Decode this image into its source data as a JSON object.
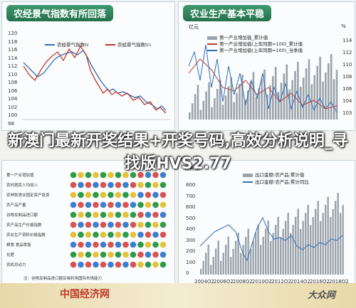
{
  "overlay_title": "新澳门最新开奖结果+开奖号码,高效分析说明_寻找版HVS2.77",
  "panels": [
    {
      "title": "农经景气指数有所回落",
      "legend": [
        "农经景气指数tc",
        "农经景气指数tci"
      ],
      "yticks": [
        "120",
        "118",
        "116",
        "114",
        "112",
        "110",
        "108",
        "106",
        "104",
        "102",
        "100",
        "98"
      ]
    },
    {
      "title": "农业生产基本平稳",
      "unit_left": "亿元",
      "unit_right": "%",
      "legend": [
        "第一产业增加值_累计值",
        "第一产业增加值(上年同期=100)_累计值",
        "第一产业增加值(上年同期=100)_当季值"
      ],
      "yticks_right": [
        "114",
        "112",
        "110",
        "108",
        "106",
        "104",
        "103"
      ]
    },
    {
      "rows": [
        "第一产业增加值",
        "农村居民人均收入",
        "农林牧渔业固定资产投资",
        "农产品产量",
        "谷物及制品进口额",
        "农产品生产价格指数",
        "农业生产资料价格指数",
        "粮食·食品零售",
        "化肥",
        "农机总动力"
      ],
      "note": "注：谷物及制品进口额反映利用国际市场能力"
    },
    {
      "unit_left": "亿美元",
      "legend": [
        "出口金额:农产品:累计值",
        "出口金额:农产品:累计同比"
      ],
      "yticks": [
        "800",
        "700",
        "600",
        "500",
        "400",
        "300",
        "200",
        "100",
        "0"
      ],
      "xticks": [
        "2004Q2",
        "2006Q2",
        "2008Q2",
        "2010Q2",
        "2012Q2",
        "2014Q2",
        "2016Q2",
        "2018Q2"
      ]
    }
  ],
  "logo": "中国经济网",
  "watermark": "大众网"
}
